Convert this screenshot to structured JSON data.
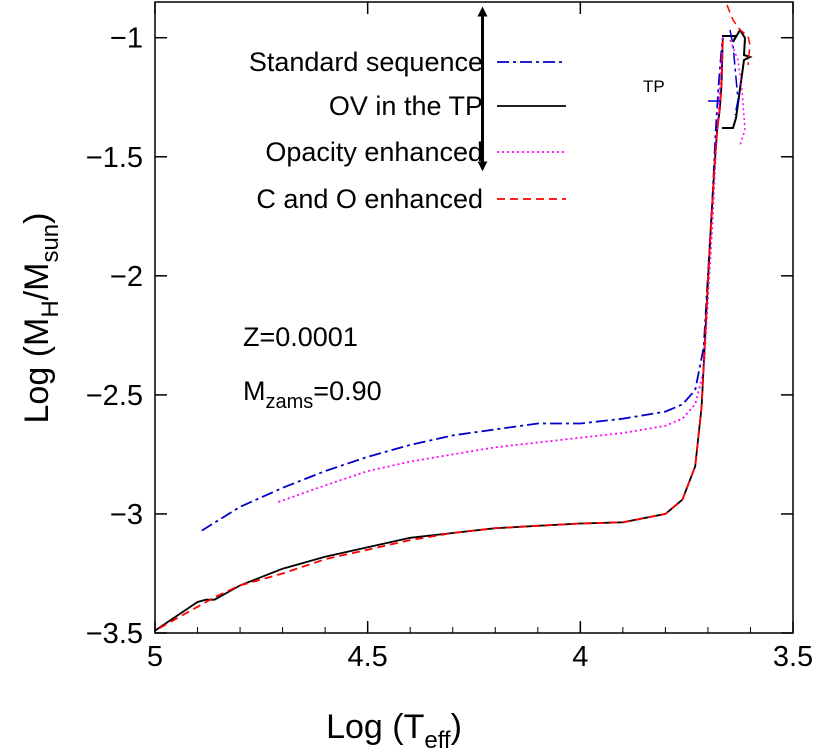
{
  "chart_data": {
    "type": "line",
    "xlabel": "Log (T",
    "xlabel_sub": "eff",
    "ylabel_prefix": "Log (M",
    "ylabel_sub1": "H",
    "ylabel_mid": "/M",
    "ylabel_sub2": "sun",
    "close_paren": ")",
    "xlim": [
      5,
      3.5
    ],
    "ylim": [
      -3.5,
      -0.85
    ],
    "xticks": [
      {
        "value": 5,
        "label": "5"
      },
      {
        "value": 4.5,
        "label": "4.5"
      },
      {
        "value": 4,
        "label": "4"
      },
      {
        "value": 3.5,
        "label": "3.5"
      }
    ],
    "yticks": [
      {
        "value": -1,
        "label": "−1"
      },
      {
        "value": -1.5,
        "label": "−1.5"
      },
      {
        "value": -2,
        "label": "−2"
      },
      {
        "value": -2.5,
        "label": "−2.5"
      },
      {
        "value": -3,
        "label": "−3"
      },
      {
        "value": -3.5,
        "label": "−3.5"
      }
    ],
    "legend_position": "top-left",
    "annotations": {
      "z_text": "Z=0.0001",
      "m_prefix": "M",
      "m_sub": "zams",
      "m_value": "=0.90",
      "tp_label": "TP",
      "tp_arrow_x": 4.23,
      "tp_arrow_y": [
        -0.89,
        -1.54
      ]
    },
    "series": [
      {
        "name": "Standard sequence",
        "color": "#0000cc",
        "dash": "12,4,3,4",
        "x": [
          4.89,
          4.8,
          4.7,
          4.6,
          4.5,
          4.4,
          4.3,
          4.2,
          4.1,
          4.0,
          3.9,
          3.8,
          3.76,
          3.73,
          3.71,
          3.7,
          3.69,
          3.682,
          3.675,
          3.668,
          3.665
        ],
        "y": [
          -3.07,
          -2.97,
          -2.89,
          -2.82,
          -2.76,
          -2.71,
          -2.67,
          -2.645,
          -2.62,
          -2.62,
          -2.6,
          -2.57,
          -2.54,
          -2.48,
          -2.3,
          -2.0,
          -1.7,
          -1.4,
          -1.2,
          -1.05,
          -1.0
        ]
      },
      {
        "name": "OV in the TP",
        "color": "#000000",
        "dash": "",
        "x": [
          5.0,
          4.95,
          4.9,
          4.88,
          4.86,
          4.8,
          4.7,
          4.6,
          4.5,
          4.4,
          4.3,
          4.2,
          4.1,
          4.0,
          3.9,
          3.8,
          3.76,
          3.73,
          3.715,
          3.705,
          3.695,
          3.685,
          3.678,
          3.672,
          3.668,
          3.665
        ],
        "y": [
          -3.49,
          -3.43,
          -3.37,
          -3.36,
          -3.36,
          -3.3,
          -3.23,
          -3.18,
          -3.14,
          -3.1,
          -3.08,
          -3.06,
          -3.05,
          -3.04,
          -3.035,
          -3.0,
          -2.94,
          -2.8,
          -2.55,
          -2.2,
          -1.85,
          -1.55,
          -1.38,
          -1.3,
          -1.2,
          -1.0
        ]
      },
      {
        "name": "Opacity enhanced",
        "color": "#ff00ff",
        "dash": "2,3",
        "x": [
          4.71,
          4.6,
          4.5,
          4.4,
          4.3,
          4.2,
          4.1,
          4.0,
          3.9,
          3.8,
          3.76,
          3.73,
          3.71,
          3.7,
          3.69,
          3.682,
          3.675,
          3.668,
          3.664
        ],
        "y": [
          -2.95,
          -2.88,
          -2.82,
          -2.78,
          -2.75,
          -2.72,
          -2.7,
          -2.68,
          -2.66,
          -2.63,
          -2.6,
          -2.54,
          -2.4,
          -2.1,
          -1.8,
          -1.5,
          -1.3,
          -1.1,
          -1.0
        ]
      },
      {
        "name": "C and O enhanced",
        "color": "#ff0000",
        "dash": "8,5",
        "x": [
          4.99,
          4.9,
          4.86,
          4.8,
          4.7,
          4.6,
          4.5,
          4.4,
          4.3,
          4.2,
          4.1,
          4.0,
          3.9,
          3.8,
          3.76,
          3.73,
          3.715,
          3.705,
          3.695,
          3.685,
          3.678,
          3.672,
          3.668,
          3.665
        ],
        "y": [
          -3.48,
          -3.39,
          -3.35,
          -3.3,
          -3.25,
          -3.19,
          -3.15,
          -3.11,
          -3.08,
          -3.06,
          -3.05,
          -3.04,
          -3.035,
          -3.0,
          -2.94,
          -2.8,
          -2.55,
          -2.2,
          -1.85,
          -1.55,
          -1.38,
          -1.3,
          -1.2,
          -1.0
        ]
      }
    ]
  }
}
